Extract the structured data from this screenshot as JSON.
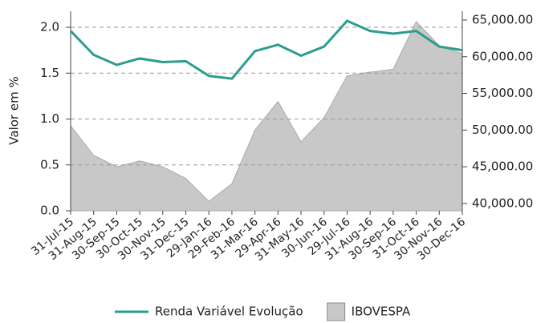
{
  "chart_data": {
    "type": "line",
    "y_label": "Valor em %",
    "categories": [
      "31-Jul-15",
      "31-Aug-15",
      "30-Sep-15",
      "30-Oct-15",
      "30-Nov-15",
      "31-Dec-15",
      "29-Jan-16",
      "29-Feb-16",
      "31-Mar-16",
      "29-Apr-16",
      "31-May-16",
      "30-Jun-16",
      "29-Jul-16",
      "31-Aug-16",
      "30-Sep-16",
      "31-Oct-16",
      "30-Nov-16",
      "30-Dec-16"
    ],
    "series": [
      {
        "name": "Renda Variável Evolução",
        "color": "#2a9d8f",
        "type": "line",
        "values": [
          1.96,
          1.7,
          1.59,
          1.66,
          1.62,
          1.63,
          1.47,
          1.44,
          1.74,
          1.81,
          1.69,
          1.79,
          2.07,
          1.96,
          1.93,
          1.96,
          1.79,
          1.75
        ]
      },
      {
        "name": "IBOVESPA",
        "color": "#c8c8c8",
        "type": "area",
        "axis": "y2",
        "values": [
          50600,
          46550,
          45000,
          45800,
          45000,
          43400,
          40300,
          42700,
          50000,
          53900,
          48400,
          51700,
          57400,
          57900,
          58300,
          64800,
          61500,
          60400
        ]
      }
    ],
    "ylim": [
      0,
      2.175
    ],
    "yticks": [
      {
        "value": 0,
        "label": "0.0"
      },
      0.5,
      {
        "value": 1,
        "label": "1.0"
      },
      1.5,
      {
        "value": 2,
        "label": "2.0"
      }
    ],
    "y2lim": [
      39000,
      66200
    ],
    "y2ticks": [
      {
        "value": 40000,
        "label": "40,000.00"
      },
      {
        "value": 45000,
        "label": "45,000.00"
      },
      {
        "value": 50000,
        "label": "50,000.00"
      },
      {
        "value": 55000,
        "label": "55,000.00"
      },
      {
        "value": 60000,
        "label": "60,000.00"
      },
      {
        "value": 65000,
        "label": "65,000.00"
      }
    ],
    "grid": true,
    "legend": "bottom"
  }
}
